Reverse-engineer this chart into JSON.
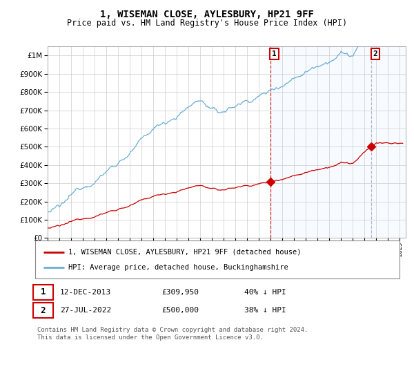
{
  "title": "1, WISEMAN CLOSE, AYLESBURY, HP21 9FF",
  "subtitle": "Price paid vs. HM Land Registry's House Price Index (HPI)",
  "ytick_values": [
    0,
    100000,
    200000,
    300000,
    400000,
    500000,
    600000,
    700000,
    800000,
    900000,
    1000000
  ],
  "ylim": [
    0,
    1050000
  ],
  "xlim_start": 1995.0,
  "xlim_end": 2025.5,
  "hpi_color": "#6baed6",
  "price_color": "#cc0000",
  "purchase1_x": 2013.958,
  "purchase1_y": 309950,
  "purchase2_x": 2022.556,
  "purchase2_y": 500000,
  "legend_label1": "1, WISEMAN CLOSE, AYLESBURY, HP21 9FF (detached house)",
  "legend_label2": "HPI: Average price, detached house, Buckinghamshire",
  "table_row1": [
    "1",
    "12-DEC-2013",
    "£309,950",
    "40% ↓ HPI"
  ],
  "table_row2": [
    "2",
    "27-JUL-2022",
    "£500,000",
    "38% ↓ HPI"
  ],
  "footnote": "Contains HM Land Registry data © Crown copyright and database right 2024.\nThis data is licensed under the Open Government Licence v3.0.",
  "bg_color": "#ffffff",
  "grid_color": "#cccccc",
  "shade_color": "#ddeeff"
}
